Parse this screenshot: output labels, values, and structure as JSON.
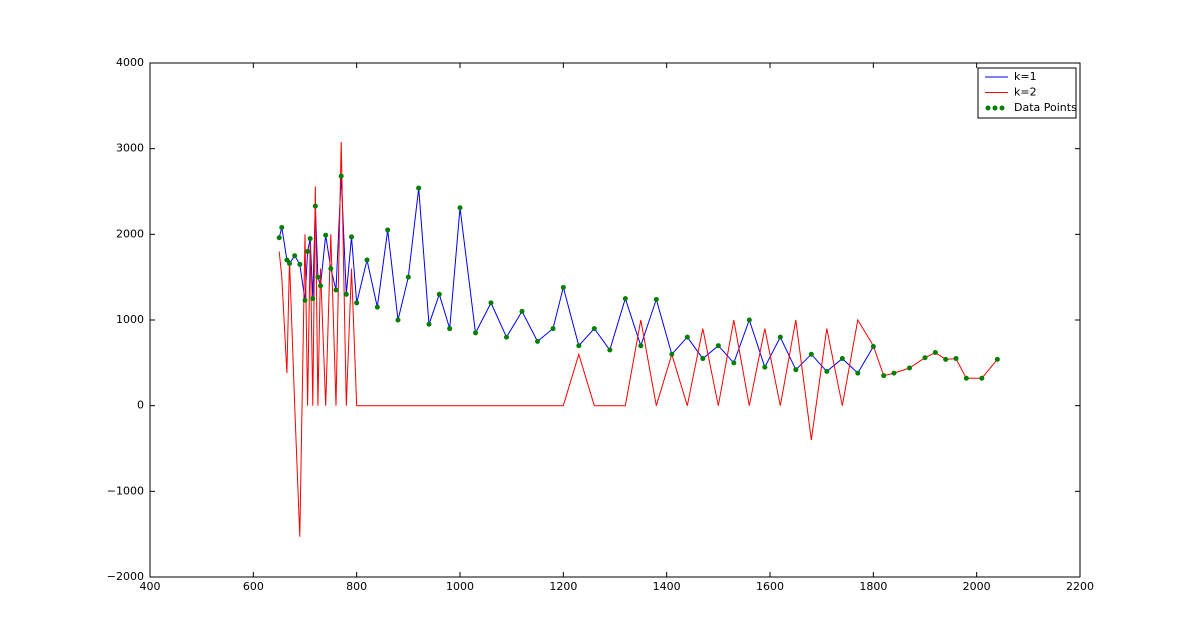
{
  "chart_data": {
    "type": "line",
    "x": [
      650,
      655,
      665,
      670,
      680,
      690,
      700,
      705,
      710,
      715,
      720,
      725,
      730,
      740,
      750,
      760,
      770,
      780,
      790,
      800,
      820,
      840,
      860,
      880,
      900,
      920,
      940,
      960,
      980,
      1000,
      1030,
      1060,
      1090,
      1120,
      1150,
      1180,
      1200,
      1230,
      1260,
      1290,
      1320,
      1350,
      1380,
      1410,
      1440,
      1470,
      1500,
      1530,
      1560,
      1590,
      1620,
      1650,
      1680,
      1710,
      1740,
      1770,
      1800,
      1820,
      1840,
      1870,
      1900,
      1920,
      1940,
      1960,
      1980,
      2010,
      2040
    ],
    "series": [
      {
        "name": "k=1",
        "type": "line",
        "color": "#0000ff",
        "values": [
          1960,
          2080,
          1700,
          1660,
          1750,
          1650,
          1230,
          1800,
          1950,
          1250,
          2330,
          1500,
          1400,
          1990,
          1600,
          1350,
          2680,
          1300,
          1970,
          1200,
          1700,
          1150,
          2050,
          1000,
          1500,
          2540,
          950,
          1300,
          900,
          2310,
          850,
          1200,
          800,
          1100,
          750,
          900,
          1380,
          700,
          900,
          650,
          1250,
          700,
          1240,
          600,
          800,
          550,
          700,
          500,
          1000,
          450,
          800,
          420,
          600,
          400,
          550,
          380,
          690,
          null,
          null,
          null,
          null,
          null,
          null,
          null,
          null,
          null,
          null
        ]
      },
      {
        "name": "k=2",
        "type": "line",
        "color": "#ff0000",
        "values": [
          1800,
          1500,
          380,
          1700,
          0,
          -1530,
          2000,
          0,
          1900,
          0,
          2560,
          0,
          1600,
          0,
          2000,
          0,
          3080,
          0,
          1600,
          0,
          0,
          0,
          0,
          0,
          0,
          0,
          0,
          0,
          0,
          0,
          0,
          0,
          0,
          0,
          0,
          0,
          0,
          600,
          0,
          0,
          0,
          1000,
          0,
          600,
          0,
          900,
          0,
          1000,
          0,
          900,
          0,
          1000,
          -400,
          900,
          0,
          1000,
          700,
          350,
          380,
          440,
          560,
          620,
          540,
          550,
          320,
          320,
          540
        ]
      },
      {
        "name": "Data Points",
        "type": "scatter",
        "color": "#007f00",
        "values": [
          1960,
          2080,
          1700,
          1660,
          1750,
          1650,
          1230,
          1800,
          1950,
          1250,
          2330,
          1500,
          1400,
          1990,
          1600,
          1350,
          2680,
          1300,
          1970,
          1200,
          1700,
          1150,
          2050,
          1000,
          1500,
          2540,
          950,
          1300,
          900,
          2310,
          850,
          1200,
          800,
          1100,
          750,
          900,
          1380,
          700,
          900,
          650,
          1250,
          700,
          1240,
          600,
          800,
          550,
          700,
          500,
          1000,
          450,
          800,
          420,
          600,
          400,
          550,
          380,
          690,
          350,
          380,
          440,
          560,
          620,
          540,
          550,
          320,
          320,
          540
        ]
      }
    ],
    "xlim": [
      400,
      2200
    ],
    "xticks": [
      400,
      600,
      800,
      1000,
      1200,
      1400,
      1600,
      1800,
      2000,
      2200
    ],
    "ylim": [
      -2000,
      4000
    ],
    "yticks": [
      {
        "value": -2000,
        "label": "−2000"
      },
      {
        "value": -1000,
        "label": "−1000"
      },
      0,
      1000,
      2000,
      3000,
      4000
    ],
    "legend": "upper right"
  }
}
